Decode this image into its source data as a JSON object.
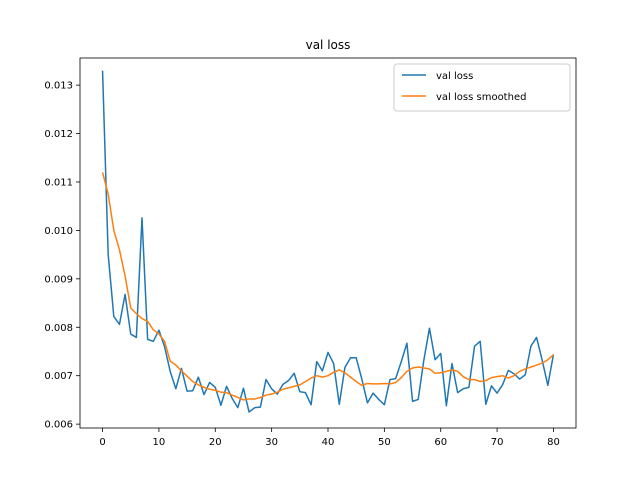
{
  "chart_data": {
    "type": "line",
    "title": "val loss",
    "xlabel": "",
    "ylabel": "",
    "xlim": [
      -4,
      84
    ],
    "ylim": [
      0.00592,
      0.01356
    ],
    "grid": false,
    "legend_position": "top-right",
    "x_ticks": [
      0,
      10,
      20,
      30,
      40,
      50,
      60,
      70,
      80
    ],
    "y_ticks": [
      0.006,
      0.007,
      0.008,
      0.009,
      0.01,
      0.011,
      0.012,
      0.013
    ],
    "y_tick_labels": [
      "0.006",
      "0.007",
      "0.008",
      "0.009",
      "0.010",
      "0.011",
      "0.012",
      "0.013"
    ],
    "x": [
      0,
      1,
      2,
      3,
      4,
      5,
      6,
      7,
      8,
      9,
      10,
      11,
      12,
      13,
      14,
      15,
      16,
      17,
      18,
      19,
      20,
      21,
      22,
      23,
      24,
      25,
      26,
      27,
      28,
      29,
      30,
      31,
      32,
      33,
      34,
      35,
      36,
      37,
      38,
      39,
      40,
      41,
      42,
      43,
      44,
      45,
      46,
      47,
      48,
      49,
      50,
      51,
      52,
      53,
      54,
      55,
      56,
      57,
      58,
      59,
      60,
      61,
      62,
      63,
      64,
      65,
      66,
      67,
      68,
      69,
      70,
      71,
      72,
      73,
      74,
      75,
      76,
      77,
      78,
      79,
      80
    ],
    "series": [
      {
        "name": "val loss",
        "color": "#1f77b4",
        "values": [
          0.0133,
          0.0095,
          0.00822,
          0.00806,
          0.00868,
          0.00786,
          0.00779,
          0.01026,
          0.00775,
          0.00771,
          0.00794,
          0.0076,
          0.00709,
          0.00673,
          0.00715,
          0.00668,
          0.00669,
          0.00697,
          0.00661,
          0.00686,
          0.00676,
          0.00639,
          0.00678,
          0.00653,
          0.00634,
          0.00674,
          0.00625,
          0.00634,
          0.00635,
          0.00692,
          0.00673,
          0.00662,
          0.00682,
          0.0069,
          0.00705,
          0.00667,
          0.00665,
          0.0064,
          0.00729,
          0.0071,
          0.00748,
          0.00725,
          0.00641,
          0.00717,
          0.00737,
          0.00737,
          0.00693,
          0.00644,
          0.00664,
          0.00651,
          0.0064,
          0.00692,
          0.00694,
          0.00729,
          0.00767,
          0.00647,
          0.00651,
          0.00732,
          0.00798,
          0.00733,
          0.00746,
          0.00638,
          0.00725,
          0.00665,
          0.00673,
          0.00676,
          0.00761,
          0.00771,
          0.00641,
          0.00679,
          0.00664,
          0.00682,
          0.00711,
          0.00704,
          0.00693,
          0.00702,
          0.00761,
          0.00779,
          0.00732,
          0.0068,
          0.00744
        ]
      },
      {
        "name": "val loss smoothed",
        "color": "#ff7f0e",
        "values": [
          0.0112,
          0.01075,
          0.01,
          0.0096,
          0.00906,
          0.0084,
          0.00828,
          0.00818,
          0.00812,
          0.00795,
          0.00786,
          0.00771,
          0.0073,
          0.00722,
          0.0071,
          0.00699,
          0.00688,
          0.00681,
          0.00676,
          0.00672,
          0.0067,
          0.00666,
          0.00665,
          0.0066,
          0.00655,
          0.0065,
          0.00652,
          0.00652,
          0.00655,
          0.0066,
          0.00662,
          0.00666,
          0.00672,
          0.00675,
          0.00678,
          0.00681,
          0.00688,
          0.00695,
          0.007,
          0.00697,
          0.007,
          0.00707,
          0.00712,
          0.00706,
          0.00697,
          0.00688,
          0.0068,
          0.00684,
          0.00683,
          0.00683,
          0.00684,
          0.00683,
          0.00686,
          0.00696,
          0.00709,
          0.00716,
          0.00718,
          0.00716,
          0.00714,
          0.00705,
          0.00706,
          0.00709,
          0.00712,
          0.00709,
          0.00698,
          0.00692,
          0.00692,
          0.00688,
          0.0069,
          0.00696,
          0.00698,
          0.007,
          0.00695,
          0.007,
          0.00709,
          0.00714,
          0.00718,
          0.00722,
          0.00726,
          0.00733,
          0.00743
        ]
      }
    ]
  }
}
